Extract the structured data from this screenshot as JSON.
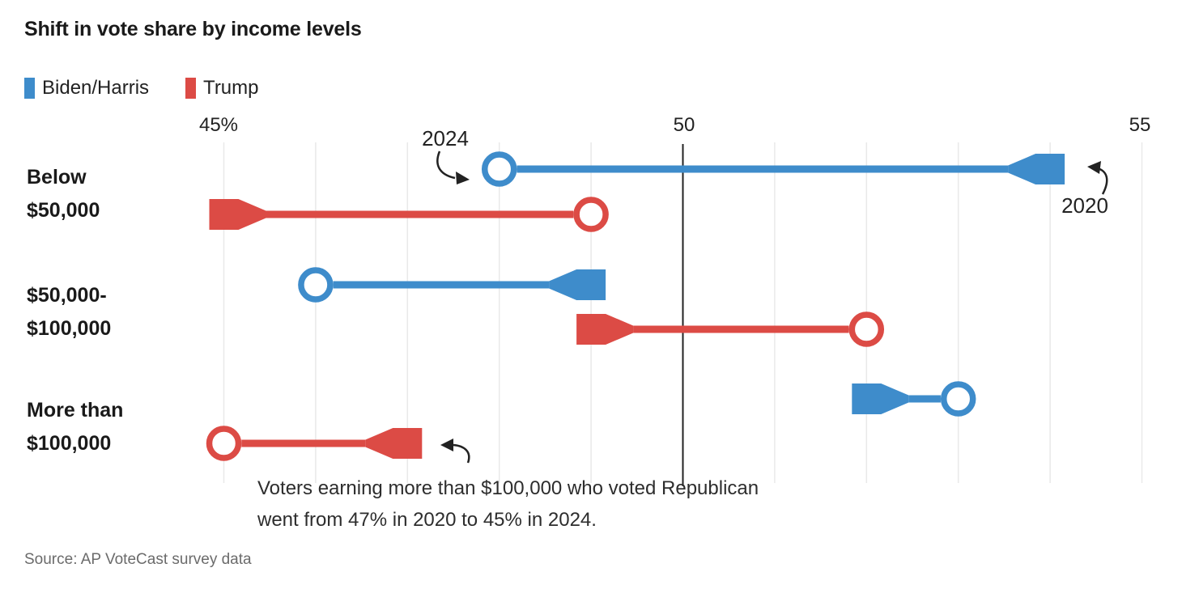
{
  "title": "Shift in vote share by income levels",
  "legend": [
    {
      "label": "Biden/Harris",
      "color": "#3E8CCB"
    },
    {
      "label": "Trump",
      "color": "#DC4B45"
    }
  ],
  "annotations": {
    "year_2024": "2024",
    "year_2020": "2020",
    "callout_line1": "Voters earning more than $100,000 who voted Republican",
    "callout_line2": "went from 47% in 2020 to 45% in 2024."
  },
  "source": "Source: AP VoteCast survey data",
  "chart_data": {
    "type": "dumbbell-arrow",
    "title": "Shift in vote share by income levels",
    "categories": [
      "Below $50,000",
      "$50,000-$100,000",
      "More than $100,000"
    ],
    "categories_lines": [
      [
        "Below",
        "$50,000"
      ],
      [
        "$50,000-",
        "$100,000"
      ],
      [
        "More than",
        "$100,000"
      ]
    ],
    "x_axis": {
      "unit": "percent of vote share",
      "gridline_values": [
        45,
        46,
        47,
        48,
        49,
        50,
        51,
        52,
        53,
        54,
        55
      ],
      "labeled_ticks": [
        {
          "value": 45,
          "label": "45%"
        },
        {
          "value": 50,
          "label": "50"
        },
        {
          "value": 55,
          "label": "55"
        }
      ],
      "emphasized_value": 50,
      "grid": true
    },
    "markers": {
      "2020": "flared tail",
      "2024": "open circle"
    },
    "series": [
      {
        "name": "Biden/Harris",
        "color": "#3E8CCB",
        "values_2020": [
          54,
          49,
          52
        ],
        "values_2024": [
          48,
          46,
          53
        ]
      },
      {
        "name": "Trump",
        "color": "#DC4B45",
        "values_2020": [
          45,
          49,
          47
        ],
        "values_2024": [
          49,
          52,
          45
        ]
      }
    ]
  }
}
